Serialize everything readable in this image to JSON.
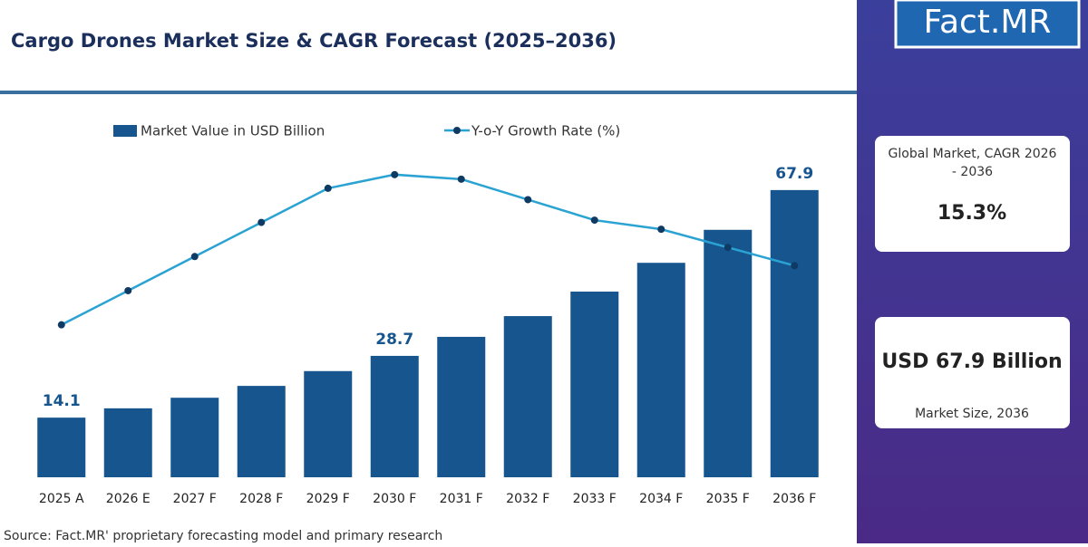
{
  "chart_data": {
    "type": "bar",
    "title": "Cargo Drones Market Size & CAGR Forecast (2025–2036)",
    "categories": [
      "2025 A",
      "2026 E",
      "2027 F",
      "2028 F",
      "2029 F",
      "2030 F",
      "2031 F",
      "2032 F",
      "2033 F",
      "2034 F",
      "2035 F",
      "2036 F"
    ],
    "series": [
      {
        "name": "Market Value in USD Billion",
        "type": "bar",
        "color": "#17558f",
        "values": [
          14.1,
          16.3,
          18.8,
          21.6,
          25.1,
          28.7,
          33.2,
          38.1,
          43.9,
          50.7,
          58.5,
          67.9
        ],
        "value_labels": [
          "14.1",
          null,
          null,
          null,
          null,
          "28.7",
          null,
          null,
          null,
          null,
          null,
          "67.9"
        ]
      },
      {
        "name": "Y-o-Y Growth Rate (%)",
        "type": "line",
        "axis": "y2",
        "color": "#2aa3d3",
        "marker_color": "#0f3a63",
        "values": [
          12.0,
          13.5,
          15.0,
          16.5,
          18.0,
          18.6,
          18.4,
          17.5,
          16.6,
          16.2,
          15.4,
          14.6
        ]
      }
    ],
    "ylim": [
      0,
      85
    ],
    "y2lim": [
      5.3,
      21.1
    ],
    "grid": false
  },
  "panel": {
    "logo": "Fact.MR",
    "cagr_label": "Global Market, CAGR 2026 - 2036",
    "cagr_value": "15.3%",
    "size_value": "USD 67.9 Billion",
    "size_label": "Market Size, 2036"
  },
  "source": "Source: Fact.MR' proprietary forecasting model and primary research"
}
